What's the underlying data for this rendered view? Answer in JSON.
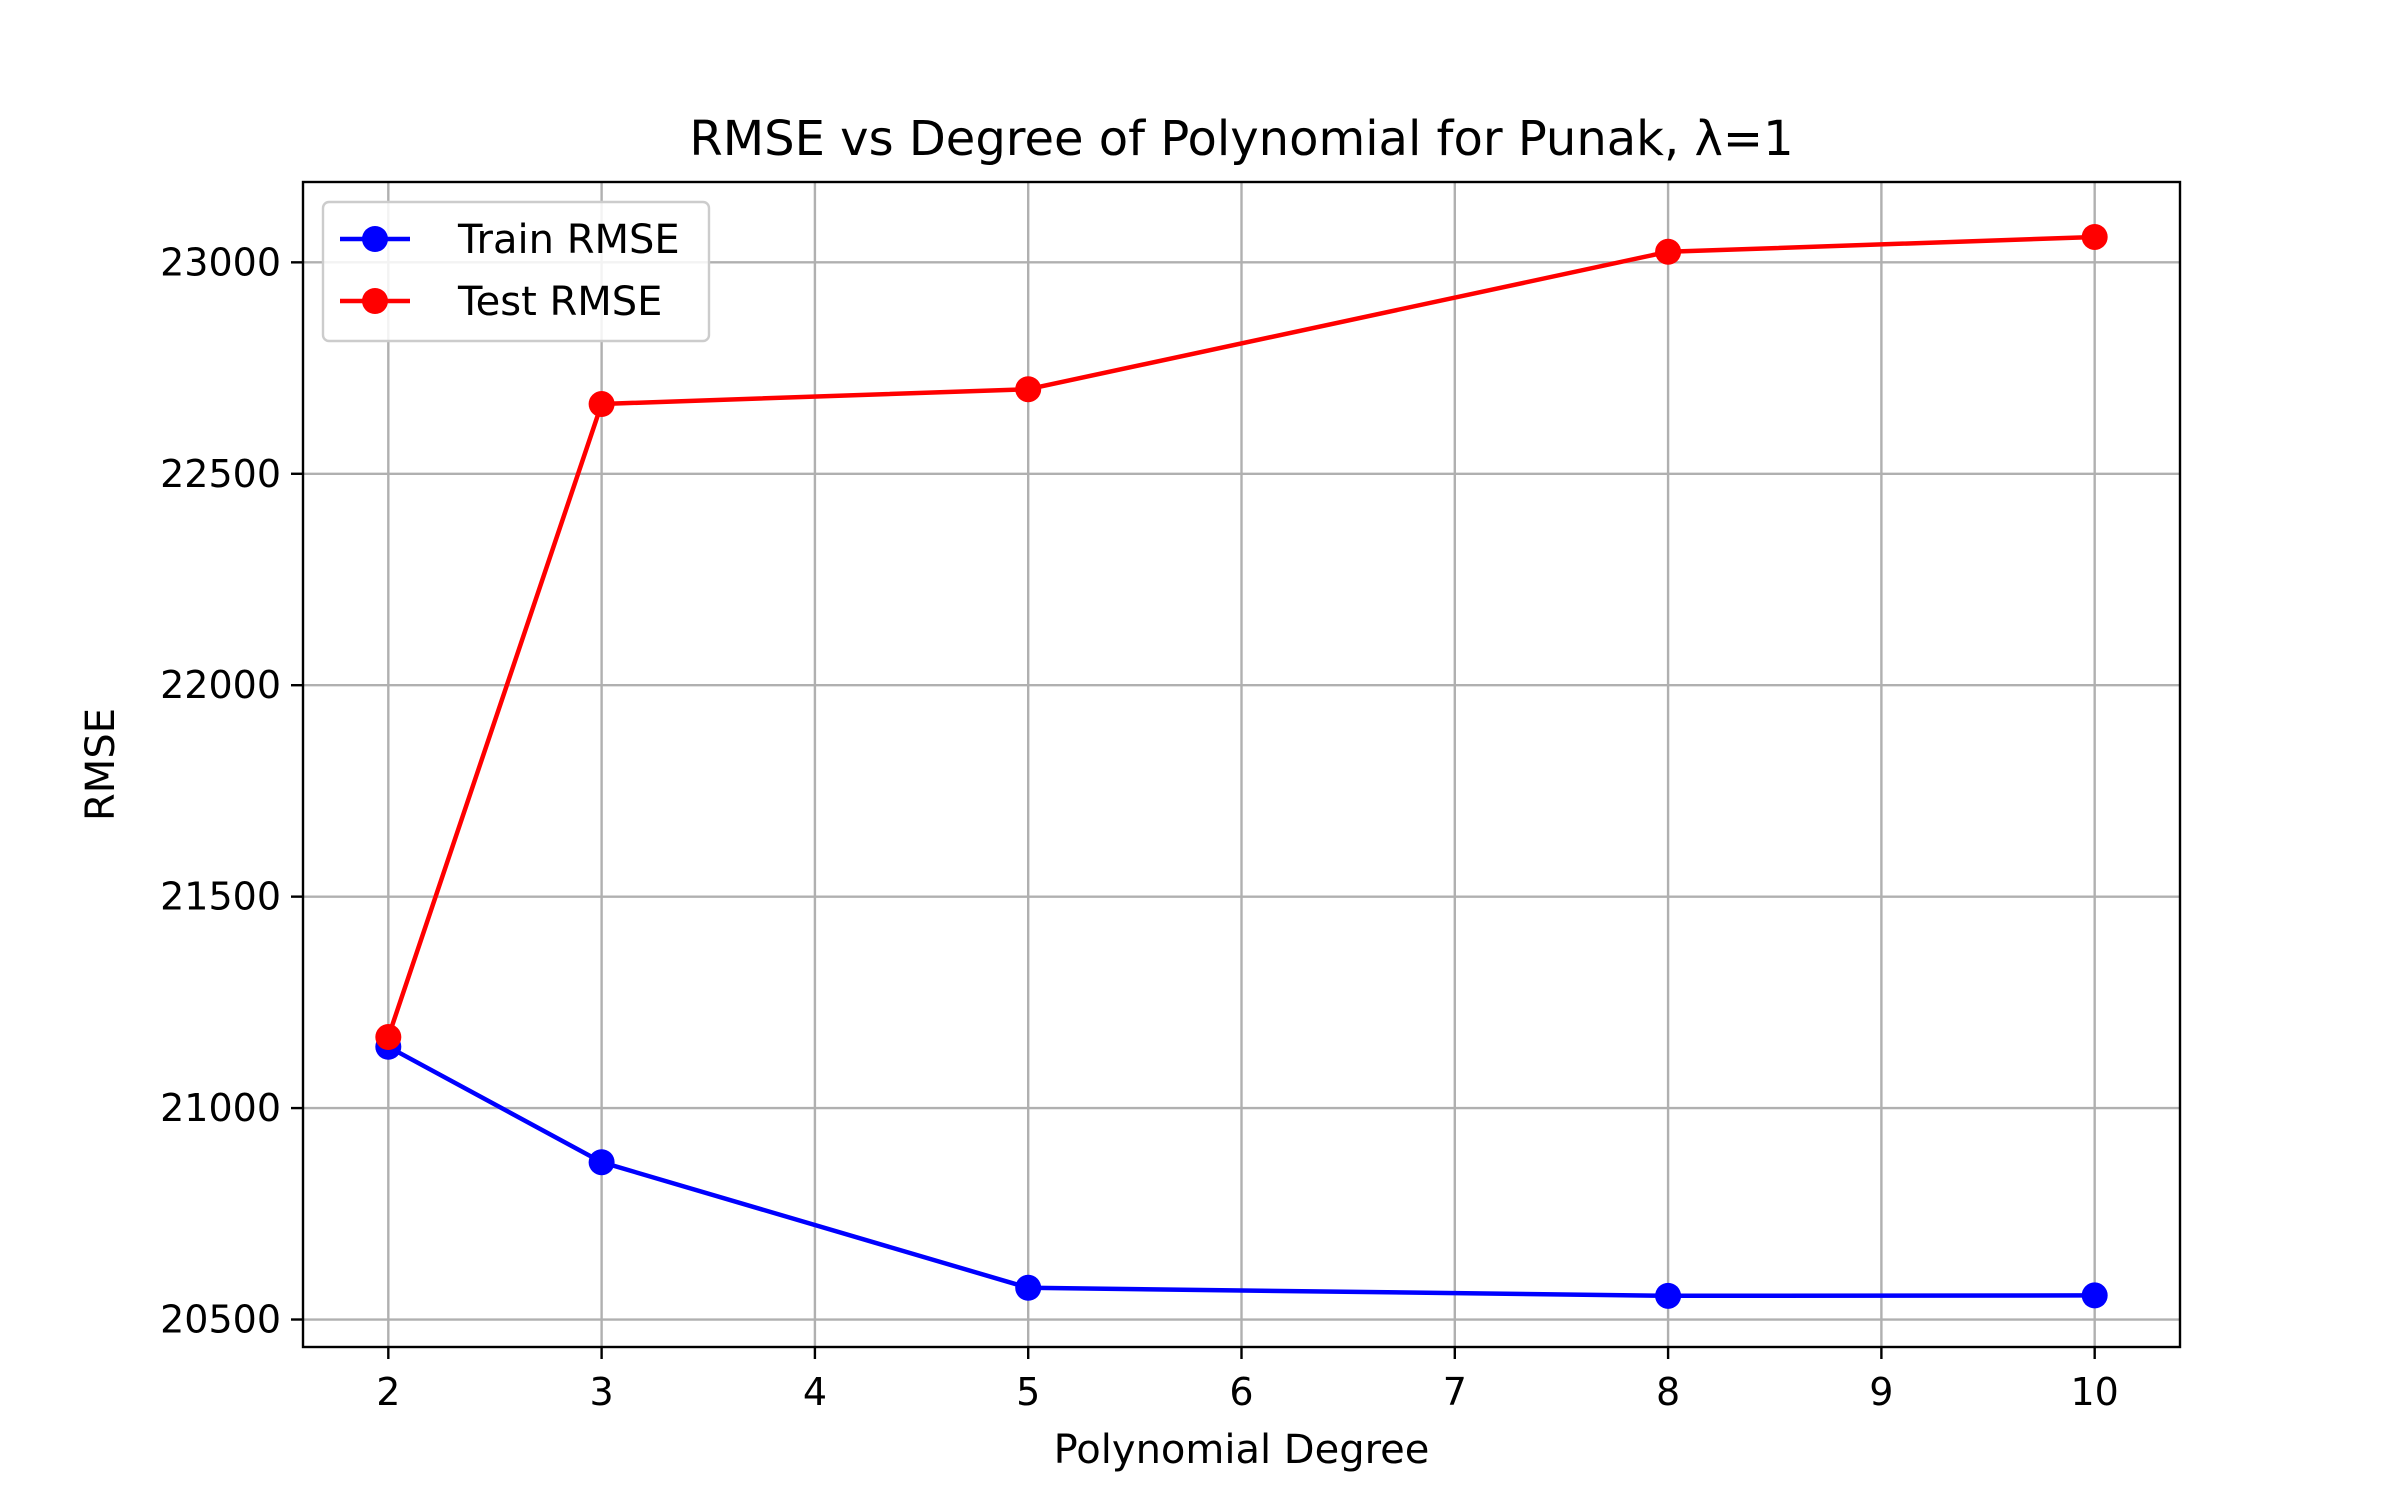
{
  "chart_data": {
    "type": "line",
    "title": "RMSE vs Degree of Polynomial for Punak, λ=1",
    "xlabel": "Polynomial Degree",
    "ylabel": "RMSE",
    "x": [
      2,
      3,
      5,
      8,
      10
    ],
    "xlim": [
      1.6,
      10.4
    ],
    "ylim": [
      20435,
      23190
    ],
    "xticks": [
      2,
      3,
      4,
      5,
      6,
      7,
      8,
      9,
      10
    ],
    "yticks": [
      20500,
      21000,
      21500,
      22000,
      22500,
      23000
    ],
    "grid": true,
    "legend_position": "top-left",
    "series": [
      {
        "name": "Train RMSE",
        "color": "#0000ff",
        "marker": "circle",
        "values": [
          21145,
          20872,
          20575,
          20556,
          20557
        ]
      },
      {
        "name": "Test RMSE",
        "color": "#ff0000",
        "marker": "circle",
        "values": [
          21168,
          22665,
          22700,
          23025,
          23060
        ]
      }
    ]
  }
}
